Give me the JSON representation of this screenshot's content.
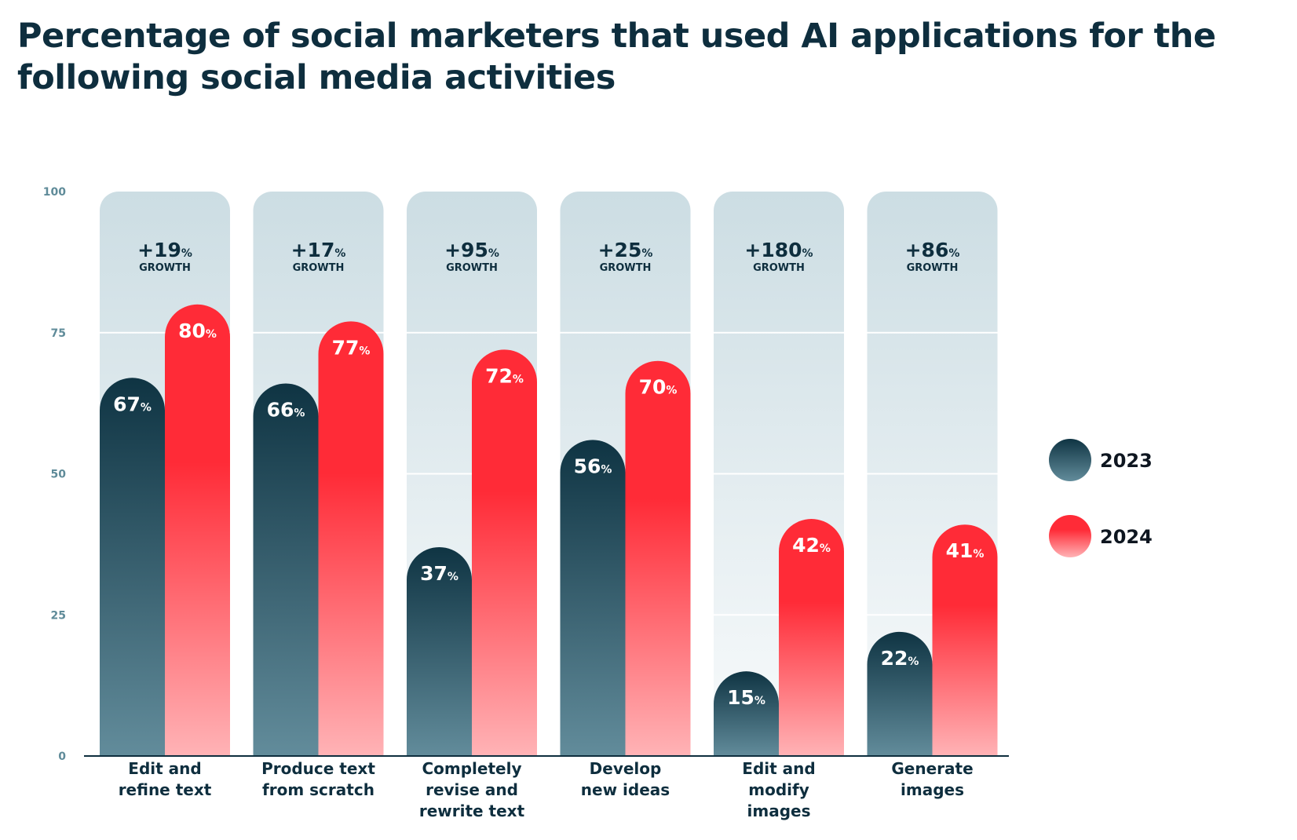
{
  "chart_data": {
    "type": "bar",
    "title": "Percentage of social marketers that used AI applications for the following social media activities",
    "categories": [
      [
        "Edit and",
        "refine text"
      ],
      [
        "Produce text",
        "from scratch"
      ],
      [
        "Completely",
        "revise and",
        "rewrite text"
      ],
      [
        "Develop",
        "new ideas"
      ],
      [
        "Edit and",
        "modify",
        "images"
      ],
      [
        "Generate",
        "images"
      ]
    ],
    "series": [
      {
        "name": "2023",
        "values": [
          67,
          66,
          37,
          56,
          15,
          22
        ]
      },
      {
        "name": "2024",
        "values": [
          80,
          77,
          72,
          70,
          42,
          41
        ]
      }
    ],
    "growth": [
      "+19",
      "+17",
      "+95",
      "+25",
      "+180",
      "+86"
    ],
    "growth_label": "GROWTH",
    "value_suffix": "%",
    "y_ticks": [
      0,
      25,
      50,
      75,
      100
    ],
    "ylim": [
      0,
      100
    ],
    "grid": true,
    "legend_position": "right",
    "colors": {
      "series_2023_top": "#0f3443",
      "series_2023_bottom": "#628c9b",
      "series_2024_top": "#ff2b37",
      "series_2024_bottom": "#ffb3b6",
      "column_bg_top": "#ccdde3",
      "column_bg_bottom": "#f9fbfc",
      "axis_line": "#0e2e3e",
      "text_dark": "#0e2e3e",
      "tick_color": "#5f8b99"
    }
  }
}
